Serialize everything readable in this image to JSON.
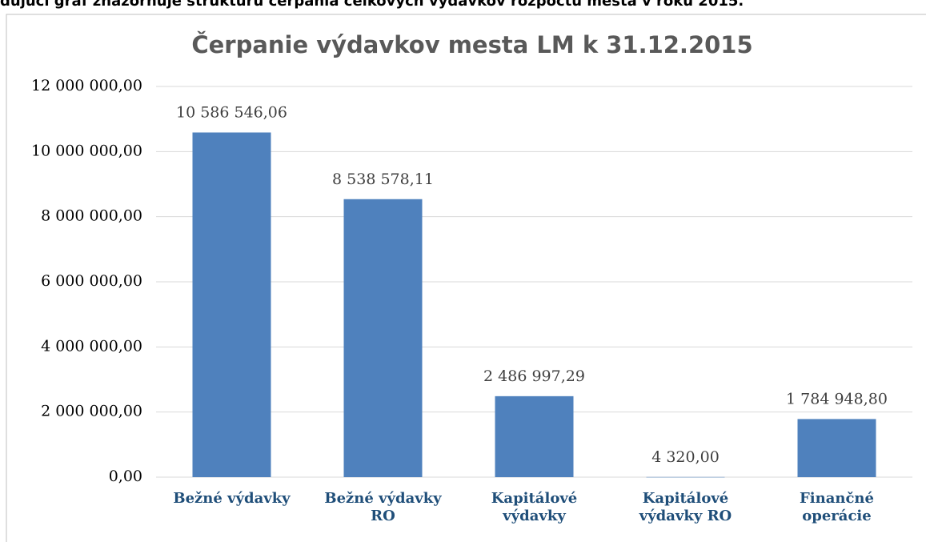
{
  "caption": "dujúci graf znázorňuje štruktúru čerpania celkových výdavkov rozpočtu mesta v roku 2015.",
  "chart_data": {
    "type": "bar",
    "title": "Čerpanie výdavkov mesta LM k 31.12.2015",
    "categories": [
      "Bežné výdavky",
      "Bežné výdavky RO",
      "Kapitálové výdavky",
      "Kapitálové výdavky RO",
      "Finančné operácie"
    ],
    "values": [
      10586546.06,
      8538578.11,
      2486997.29,
      4320,
      1784948.8
    ],
    "value_labels": [
      "10 586 546,06",
      "8 538 578,11",
      "2 486 997,29",
      "4 320,00",
      "1 784 948,80"
    ],
    "color": "#4f81bd",
    "ylim": [
      0,
      12000000
    ],
    "yticks": [
      {
        "value": 0,
        "label": "0,00"
      },
      {
        "value": 2000000,
        "label": "2 000 000,00"
      },
      {
        "value": 4000000,
        "label": "4 000 000,00"
      },
      {
        "value": 6000000,
        "label": "6 000 000,00"
      },
      {
        "value": 8000000,
        "label": "8 000 000,00"
      },
      {
        "value": 10000000,
        "label": "10 000 000,00"
      },
      {
        "value": 12000000,
        "label": "12 000 000,00"
      }
    ],
    "grid": true
  }
}
